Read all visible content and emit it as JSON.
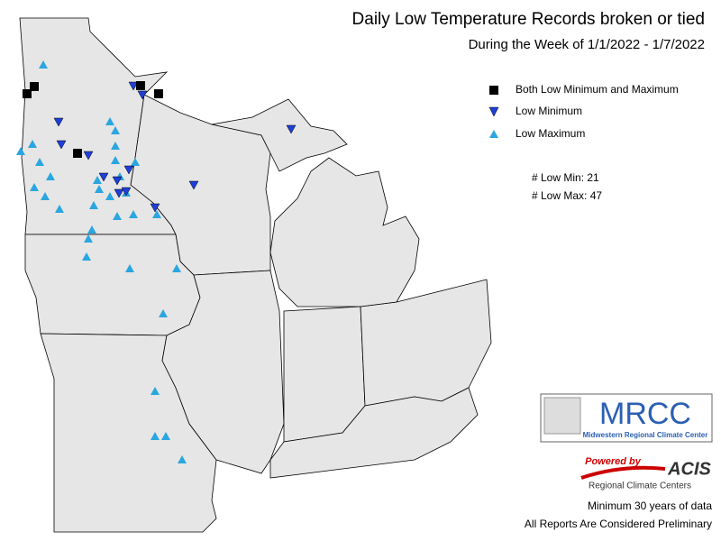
{
  "header": {
    "title": "Daily Low Temperature Records broken or tied",
    "subtitle": "During the Week of 1/1/2022 - 1/7/2022"
  },
  "legend": [
    "Both Low Minimum and Maximum",
    "Low Minimum",
    "Low Maximum"
  ],
  "counts": [
    {
      "label": "# Low Min:",
      "value": 21
    },
    {
      "label": "# Low Max:",
      "value": 47
    }
  ],
  "logo": {
    "mrcc": "MRCC",
    "mrcc_name": "Midwestern Regional Climate Center",
    "powered": "Powered by",
    "acis": "ACIS",
    "rcc": "Regional Climate Centers"
  },
  "footer": [
    "Minimum 30 years of data",
    "All Reports Are Considered Preliminary"
  ]
}
